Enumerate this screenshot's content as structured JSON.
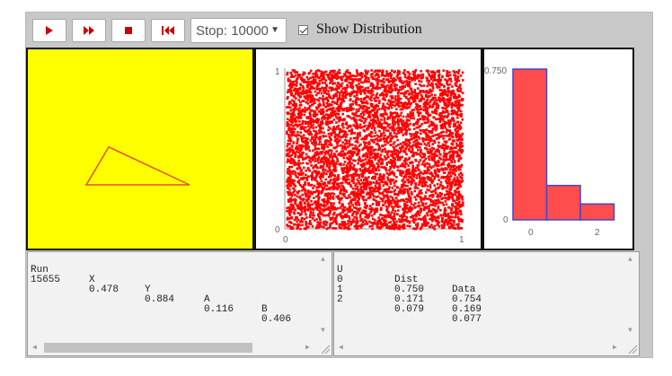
{
  "toolbar": {
    "play_icon": "play-icon",
    "fast_forward_icon": "fast-forward-icon",
    "stop_icon": "stop-icon",
    "reset_icon": "reset-icon",
    "stop_label": "Stop: 10000",
    "show_distribution_label": "Show Distribution",
    "show_distribution_checked": true
  },
  "colors": {
    "button_icon": "#cc0000",
    "sim_background": "#ffff00",
    "points": "#ff0000",
    "bar_fill": "#ff4d4d",
    "bar_outline": "#4444cc"
  },
  "triangle": {
    "vertices": [
      [
        0.36,
        0.49
      ],
      [
        0.26,
        0.68
      ],
      [
        0.72,
        0.68
      ]
    ]
  },
  "scatter": {
    "xmin_label": "0",
    "xmax_label": "1",
    "ymin_label": "0",
    "ymax_label": "1"
  },
  "chart_data": {
    "type": "bar",
    "categories": [
      "0",
      "1",
      "2"
    ],
    "series": [
      {
        "values": [
          0.75,
          0.171,
          0.079
        ]
      }
    ],
    "ymax": 0.75,
    "ytick_labels": [
      "0",
      "0.750"
    ],
    "xtick_labels": [
      "0",
      "2"
    ]
  },
  "run_table": {
    "headers": [
      "Run",
      "X",
      "Y",
      "A",
      "B"
    ],
    "rows": [
      [
        "15655",
        "0.478",
        "0.884",
        "0.116",
        "0.406"
      ]
    ]
  },
  "dist_table": {
    "headers": [
      "U",
      "Dist",
      "Data"
    ],
    "rows": [
      [
        "0",
        "0.750",
        "0.754"
      ],
      [
        "1",
        "0.171",
        "0.169"
      ],
      [
        "2",
        "0.079",
        "0.077"
      ]
    ]
  }
}
